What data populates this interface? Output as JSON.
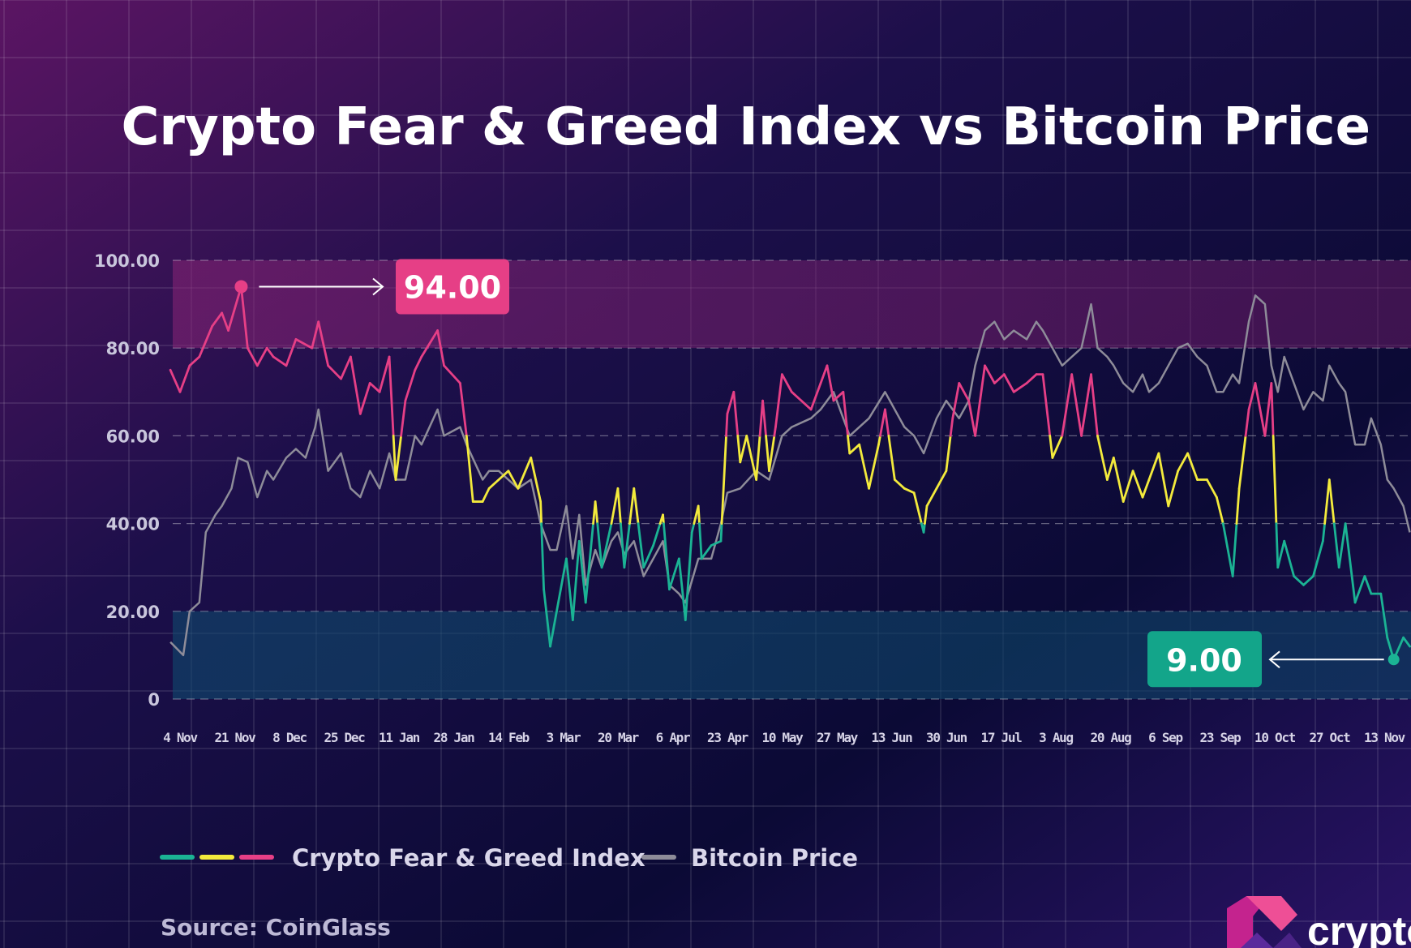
{
  "chart_data": {
    "type": "line",
    "title": "Crypto Fear & Greed Index vs Bitcoin Price",
    "ylim": [
      0,
      100
    ],
    "y_ticks": [
      "0",
      "20.00",
      "40.00",
      "60.00",
      "80.00",
      "100.00"
    ],
    "x_ticks": [
      "4 Nov",
      "21 Nov",
      "8 Dec",
      "25 Dec",
      "11 Jan",
      "28 Jan",
      "14 Feb",
      "3 Mar",
      "20 Mar",
      "6 Apr",
      "23 Apr",
      "10 May",
      "27 May",
      "13 Jun",
      "30 Jun",
      "17 Jul",
      "3 Aug",
      "20 Aug",
      "6 Sep",
      "23 Sep",
      "10 Oct",
      "27 Oct",
      "13 Nov"
    ],
    "grid": true,
    "legend_position": "bottom-left",
    "zones": [
      {
        "from": 80,
        "to": 100,
        "color": "#7a1e6e"
      },
      {
        "from": 0,
        "to": 20,
        "color": "#0d3f63"
      }
    ],
    "colors": {
      "fear": "#1bb394",
      "neutral": "#f3ea3c",
      "greed": "#e63f86",
      "bitcoin": "#8e8c99"
    },
    "series": [
      {
        "name": "Crypto Fear & Greed Index",
        "points": [
          [
            "2021-11-01",
            75
          ],
          [
            "2021-11-04",
            70
          ],
          [
            "2021-11-07",
            76
          ],
          [
            "2021-11-10",
            78
          ],
          [
            "2021-11-14",
            85
          ],
          [
            "2021-11-17",
            88
          ],
          [
            "2021-11-19",
            84
          ],
          [
            "2021-11-23",
            94
          ],
          [
            "2021-11-25",
            80
          ],
          [
            "2021-11-28",
            76
          ],
          [
            "2021-12-01",
            80
          ],
          [
            "2021-12-03",
            78
          ],
          [
            "2021-12-07",
            76
          ],
          [
            "2021-12-10",
            82
          ],
          [
            "2021-12-15",
            80
          ],
          [
            "2021-12-17",
            86
          ],
          [
            "2021-12-20",
            76
          ],
          [
            "2021-12-24",
            73
          ],
          [
            "2021-12-27",
            78
          ],
          [
            "2021-12-30",
            65
          ],
          [
            "2022-01-02",
            72
          ],
          [
            "2022-01-05",
            70
          ],
          [
            "2022-01-08",
            78
          ],
          [
            "2022-01-10",
            50
          ],
          [
            "2022-01-13",
            68
          ],
          [
            "2022-01-16",
            75
          ],
          [
            "2022-01-18",
            78
          ],
          [
            "2022-01-23",
            84
          ],
          [
            "2022-01-25",
            76
          ],
          [
            "2022-01-30",
            72
          ],
          [
            "2022-02-01",
            60
          ],
          [
            "2022-02-03",
            45
          ],
          [
            "2022-02-06",
            45
          ],
          [
            "2022-02-08",
            48
          ],
          [
            "2022-02-11",
            50
          ],
          [
            "2022-02-14",
            52
          ],
          [
            "2022-02-17",
            48
          ],
          [
            "2022-02-21",
            55
          ],
          [
            "2022-02-24",
            45
          ],
          [
            "2022-02-25",
            25
          ],
          [
            "2022-02-27",
            12
          ],
          [
            "2022-03-01",
            20
          ],
          [
            "2022-03-04",
            32
          ],
          [
            "2022-03-06",
            18
          ],
          [
            "2022-03-08",
            36
          ],
          [
            "2022-03-10",
            22
          ],
          [
            "2022-03-13",
            45
          ],
          [
            "2022-03-15",
            30
          ],
          [
            "2022-03-18",
            40
          ],
          [
            "2022-03-20",
            48
          ],
          [
            "2022-03-22",
            30
          ],
          [
            "2022-03-25",
            48
          ],
          [
            "2022-03-28",
            30
          ],
          [
            "2022-03-31",
            35
          ],
          [
            "2022-04-03",
            42
          ],
          [
            "2022-04-05",
            25
          ],
          [
            "2022-04-08",
            32
          ],
          [
            "2022-04-10",
            18
          ],
          [
            "2022-04-12",
            38
          ],
          [
            "2022-04-14",
            44
          ],
          [
            "2022-04-15",
            32
          ],
          [
            "2022-04-18",
            35
          ],
          [
            "2022-04-21",
            36
          ],
          [
            "2022-04-23",
            65
          ],
          [
            "2022-04-25",
            70
          ],
          [
            "2022-04-27",
            54
          ],
          [
            "2022-04-29",
            60
          ],
          [
            "2022-05-02",
            50
          ],
          [
            "2022-05-04",
            68
          ],
          [
            "2022-05-06",
            52
          ],
          [
            "2022-05-08",
            62
          ],
          [
            "2022-05-10",
            74
          ],
          [
            "2022-05-13",
            70
          ],
          [
            "2022-05-16",
            68
          ],
          [
            "2022-05-19",
            66
          ],
          [
            "2022-05-22",
            72
          ],
          [
            "2022-05-24",
            76
          ],
          [
            "2022-05-26",
            68
          ],
          [
            "2022-05-29",
            70
          ],
          [
            "2022-05-31",
            56
          ],
          [
            "2022-06-03",
            58
          ],
          [
            "2022-06-06",
            48
          ],
          [
            "2022-06-09",
            58
          ],
          [
            "2022-06-11",
            66
          ],
          [
            "2022-06-14",
            50
          ],
          [
            "2022-06-17",
            48
          ],
          [
            "2022-06-20",
            47
          ],
          [
            "2022-06-23",
            38
          ],
          [
            "2022-06-24",
            44
          ],
          [
            "2022-06-27",
            48
          ],
          [
            "2022-06-30",
            52
          ],
          [
            "2022-07-02",
            64
          ],
          [
            "2022-07-04",
            72
          ],
          [
            "2022-07-07",
            68
          ],
          [
            "2022-07-09",
            60
          ],
          [
            "2022-07-12",
            76
          ],
          [
            "2022-07-15",
            72
          ],
          [
            "2022-07-18",
            74
          ],
          [
            "2022-07-21",
            70
          ],
          [
            "2022-07-25",
            72
          ],
          [
            "2022-07-28",
            74
          ],
          [
            "2022-07-30",
            74
          ],
          [
            "2022-08-02",
            55
          ],
          [
            "2022-08-05",
            60
          ],
          [
            "2022-08-08",
            74
          ],
          [
            "2022-08-11",
            60
          ],
          [
            "2022-08-14",
            74
          ],
          [
            "2022-08-16",
            60
          ],
          [
            "2022-08-19",
            50
          ],
          [
            "2022-08-21",
            55
          ],
          [
            "2022-08-24",
            45
          ],
          [
            "2022-08-27",
            52
          ],
          [
            "2022-08-30",
            46
          ],
          [
            "2022-09-01",
            50
          ],
          [
            "2022-09-04",
            56
          ],
          [
            "2022-09-07",
            44
          ],
          [
            "2022-09-10",
            52
          ],
          [
            "2022-09-13",
            56
          ],
          [
            "2022-09-16",
            50
          ],
          [
            "2022-09-19",
            50
          ],
          [
            "2022-09-22",
            46
          ],
          [
            "2022-09-24",
            40
          ],
          [
            "2022-09-27",
            28
          ],
          [
            "2022-09-29",
            48
          ],
          [
            "2022-10-02",
            66
          ],
          [
            "2022-10-04",
            72
          ],
          [
            "2022-10-07",
            60
          ],
          [
            "2022-10-09",
            72
          ],
          [
            "2022-10-11",
            30
          ],
          [
            "2022-10-13",
            36
          ],
          [
            "2022-10-16",
            28
          ],
          [
            "2022-10-19",
            26
          ],
          [
            "2022-10-22",
            28
          ],
          [
            "2022-10-25",
            36
          ],
          [
            "2022-10-27",
            50
          ],
          [
            "2022-10-30",
            30
          ],
          [
            "2022-11-01",
            40
          ],
          [
            "2022-11-04",
            22
          ],
          [
            "2022-11-07",
            28
          ],
          [
            "2022-11-09",
            24
          ],
          [
            "2022-11-12",
            24
          ],
          [
            "2022-11-14",
            14
          ],
          [
            "2022-11-16",
            9
          ],
          [
            "2022-11-19",
            14
          ],
          [
            "2022-11-21",
            12
          ]
        ]
      },
      {
        "name": "Bitcoin Price",
        "points": [
          [
            "2021-11-01",
            13
          ],
          [
            "2021-11-05",
            10
          ],
          [
            "2021-11-07",
            20
          ],
          [
            "2021-11-10",
            22
          ],
          [
            "2021-11-12",
            38
          ],
          [
            "2021-11-15",
            42
          ],
          [
            "2021-11-17",
            44
          ],
          [
            "2021-11-20",
            48
          ],
          [
            "2021-11-22",
            55
          ],
          [
            "2021-11-25",
            54
          ],
          [
            "2021-11-28",
            46
          ],
          [
            "2021-12-01",
            52
          ],
          [
            "2021-12-03",
            50
          ],
          [
            "2021-12-07",
            55
          ],
          [
            "2021-12-10",
            57
          ],
          [
            "2021-12-13",
            55
          ],
          [
            "2021-12-16",
            62
          ],
          [
            "2021-12-17",
            66
          ],
          [
            "2021-12-20",
            52
          ],
          [
            "2021-12-24",
            56
          ],
          [
            "2021-12-27",
            48
          ],
          [
            "2021-12-30",
            46
          ],
          [
            "2022-01-02",
            52
          ],
          [
            "2022-01-05",
            48
          ],
          [
            "2022-01-08",
            56
          ],
          [
            "2022-01-10",
            50
          ],
          [
            "2022-01-13",
            50
          ],
          [
            "2022-01-16",
            60
          ],
          [
            "2022-01-18",
            58
          ],
          [
            "2022-01-23",
            66
          ],
          [
            "2022-01-25",
            60
          ],
          [
            "2022-01-30",
            62
          ],
          [
            "2022-02-01",
            58
          ],
          [
            "2022-02-06",
            50
          ],
          [
            "2022-02-08",
            52
          ],
          [
            "2022-02-11",
            52
          ],
          [
            "2022-02-14",
            50
          ],
          [
            "2022-02-17",
            48
          ],
          [
            "2022-02-21",
            50
          ],
          [
            "2022-02-24",
            40
          ],
          [
            "2022-02-27",
            34
          ],
          [
            "2022-03-01",
            34
          ],
          [
            "2022-03-04",
            44
          ],
          [
            "2022-03-06",
            32
          ],
          [
            "2022-03-08",
            42
          ],
          [
            "2022-03-10",
            26
          ],
          [
            "2022-03-13",
            34
          ],
          [
            "2022-03-15",
            30
          ],
          [
            "2022-03-18",
            36
          ],
          [
            "2022-03-20",
            38
          ],
          [
            "2022-03-22",
            33
          ],
          [
            "2022-03-25",
            36
          ],
          [
            "2022-03-28",
            28
          ],
          [
            "2022-03-31",
            32
          ],
          [
            "2022-04-03",
            36
          ],
          [
            "2022-04-05",
            26
          ],
          [
            "2022-04-08",
            24
          ],
          [
            "2022-04-10",
            22
          ],
          [
            "2022-04-14",
            32
          ],
          [
            "2022-04-18",
            32
          ],
          [
            "2022-04-21",
            40
          ],
          [
            "2022-04-23",
            47
          ],
          [
            "2022-04-27",
            48
          ],
          [
            "2022-05-02",
            52
          ],
          [
            "2022-05-06",
            50
          ],
          [
            "2022-05-10",
            60
          ],
          [
            "2022-05-13",
            62
          ],
          [
            "2022-05-19",
            64
          ],
          [
            "2022-05-22",
            66
          ],
          [
            "2022-05-26",
            70
          ],
          [
            "2022-05-31",
            60
          ],
          [
            "2022-06-06",
            64
          ],
          [
            "2022-06-11",
            70
          ],
          [
            "2022-06-17",
            62
          ],
          [
            "2022-06-20",
            60
          ],
          [
            "2022-06-23",
            56
          ],
          [
            "2022-06-27",
            64
          ],
          [
            "2022-06-30",
            68
          ],
          [
            "2022-07-04",
            64
          ],
          [
            "2022-07-07",
            68
          ],
          [
            "2022-07-09",
            76
          ],
          [
            "2022-07-12",
            84
          ],
          [
            "2022-07-15",
            86
          ],
          [
            "2022-07-18",
            82
          ],
          [
            "2022-07-21",
            84
          ],
          [
            "2022-07-25",
            82
          ],
          [
            "2022-07-28",
            86
          ],
          [
            "2022-07-30",
            84
          ],
          [
            "2022-08-02",
            80
          ],
          [
            "2022-08-05",
            76
          ],
          [
            "2022-08-08",
            78
          ],
          [
            "2022-08-11",
            80
          ],
          [
            "2022-08-14",
            90
          ],
          [
            "2022-08-16",
            80
          ],
          [
            "2022-08-19",
            78
          ],
          [
            "2022-08-21",
            76
          ],
          [
            "2022-08-24",
            72
          ],
          [
            "2022-08-27",
            70
          ],
          [
            "2022-08-30",
            74
          ],
          [
            "2022-09-01",
            70
          ],
          [
            "2022-09-04",
            72
          ],
          [
            "2022-09-07",
            76
          ],
          [
            "2022-09-10",
            80
          ],
          [
            "2022-09-13",
            81
          ],
          [
            "2022-09-16",
            78
          ],
          [
            "2022-09-19",
            76
          ],
          [
            "2022-09-22",
            70
          ],
          [
            "2022-09-24",
            70
          ],
          [
            "2022-09-27",
            74
          ],
          [
            "2022-09-29",
            72
          ],
          [
            "2022-10-02",
            86
          ],
          [
            "2022-10-04",
            92
          ],
          [
            "2022-10-07",
            90
          ],
          [
            "2022-10-09",
            76
          ],
          [
            "2022-10-11",
            70
          ],
          [
            "2022-10-13",
            78
          ],
          [
            "2022-10-16",
            72
          ],
          [
            "2022-10-19",
            66
          ],
          [
            "2022-10-22",
            70
          ],
          [
            "2022-10-25",
            68
          ],
          [
            "2022-10-27",
            76
          ],
          [
            "2022-10-30",
            72
          ],
          [
            "2022-11-01",
            70
          ],
          [
            "2022-11-04",
            58
          ],
          [
            "2022-11-07",
            58
          ],
          [
            "2022-11-09",
            64
          ],
          [
            "2022-11-12",
            58
          ],
          [
            "2022-11-14",
            50
          ],
          [
            "2022-11-16",
            48
          ],
          [
            "2022-11-19",
            44
          ],
          [
            "2022-11-21",
            38
          ]
        ]
      }
    ],
    "annotations": [
      {
        "label": "94.00",
        "date": "2021-11-23",
        "value": 94,
        "color": "#e63f86"
      },
      {
        "label": "9.00",
        "date": "2022-11-16",
        "value": 9,
        "color": "#13a58a"
      }
    ],
    "legend": [
      "Crypto Fear & Greed Index",
      "Bitcoin Price"
    ]
  },
  "source": "Source: CoinGlass",
  "logo": {
    "text": "crypto"
  }
}
